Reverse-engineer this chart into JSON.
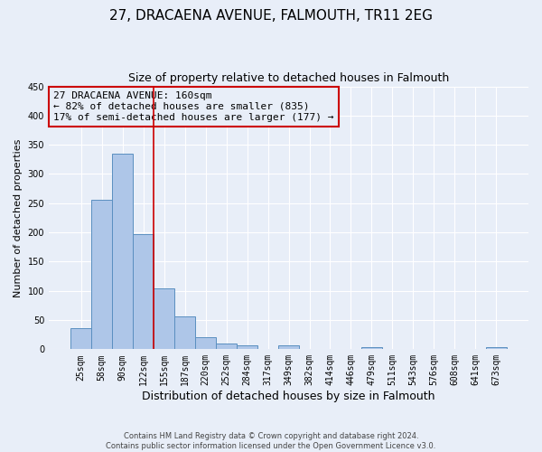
{
  "title": "27, DRACAENA AVENUE, FALMOUTH, TR11 2EG",
  "subtitle": "Size of property relative to detached houses in Falmouth",
  "xlabel": "Distribution of detached houses by size in Falmouth",
  "ylabel": "Number of detached properties",
  "bar_labels": [
    "25sqm",
    "58sqm",
    "90sqm",
    "122sqm",
    "155sqm",
    "187sqm",
    "220sqm",
    "252sqm",
    "284sqm",
    "317sqm",
    "349sqm",
    "382sqm",
    "414sqm",
    "446sqm",
    "479sqm",
    "511sqm",
    "543sqm",
    "576sqm",
    "608sqm",
    "641sqm",
    "673sqm"
  ],
  "bar_values": [
    36,
    256,
    335,
    197,
    104,
    57,
    20,
    10,
    7,
    0,
    6,
    0,
    0,
    0,
    3,
    0,
    0,
    0,
    0,
    0,
    3
  ],
  "bar_color": "#aec6e8",
  "bar_edge_color": "#5a8fc0",
  "vline_color": "#cc0000",
  "vline_pos": 3.5,
  "ylim": [
    0,
    450
  ],
  "yticks": [
    0,
    50,
    100,
    150,
    200,
    250,
    300,
    350,
    400,
    450
  ],
  "annotation_title": "27 DRACAENA AVENUE: 160sqm",
  "annotation_line1": "← 82% of detached houses are smaller (835)",
  "annotation_line2": "17% of semi-detached houses are larger (177) →",
  "annotation_box_color": "#cc0000",
  "footnote1": "Contains HM Land Registry data © Crown copyright and database right 2024.",
  "footnote2": "Contains public sector information licensed under the Open Government Licence v3.0.",
  "background_color": "#e8eef8",
  "grid_color": "#ffffff",
  "title_fontsize": 11,
  "subtitle_fontsize": 9,
  "xlabel_fontsize": 9,
  "ylabel_fontsize": 8,
  "tick_fontsize": 7,
  "annotation_fontsize": 8,
  "footnote_fontsize": 6
}
